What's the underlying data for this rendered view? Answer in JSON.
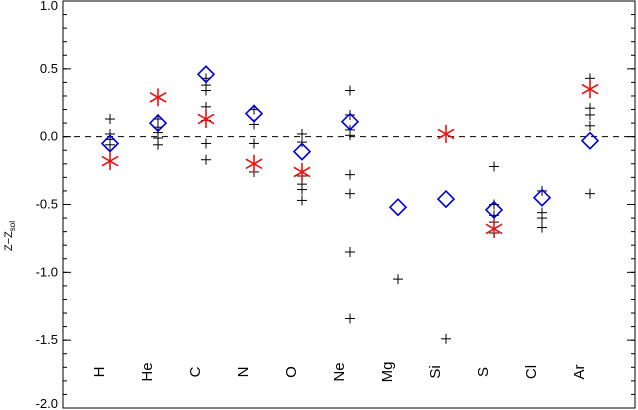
{
  "chart_data": {
    "type": "scatter",
    "ylabel": "Z−Z",
    "ylabel_subscript": "sol",
    "ylim": [
      -2.0,
      1.0
    ],
    "yticks": [
      {
        "value": 1.0,
        "label": "1.0"
      },
      {
        "value": 0.5,
        "label": "0.5"
      },
      {
        "value": 0.0,
        "label": "0.0"
      },
      {
        "value": -0.5,
        "label": "-0.5"
      },
      {
        "value": -1.0,
        "label": "-1.0"
      },
      {
        "value": -1.5,
        "label": "-1.5"
      },
      {
        "value": -2.0,
        "label": "-2.0"
      }
    ],
    "categories": [
      "H",
      "He",
      "C",
      "N",
      "O",
      "Ne",
      "Mg",
      "Si",
      "S",
      "Cl",
      "Ar"
    ],
    "reference_line": {
      "y": 0.0,
      "style": "dashed"
    },
    "series": [
      {
        "marker": "plus",
        "color": "#000000",
        "points": [
          {
            "category": "H",
            "values": [
              0.13,
              0.02,
              -0.02,
              -0.06
            ]
          },
          {
            "category": "He",
            "values": [
              0.13,
              0.07,
              0.03,
              -0.01,
              -0.06
            ]
          },
          {
            "category": "C",
            "values": [
              0.43,
              0.38,
              0.34,
              0.22,
              0.12,
              -0.05,
              -0.17
            ]
          },
          {
            "category": "N",
            "values": [
              0.2,
              0.09,
              -0.05,
              -0.26
            ]
          },
          {
            "category": "O",
            "values": [
              0.02,
              -0.04,
              -0.29,
              -0.35,
              -0.39,
              -0.47
            ]
          },
          {
            "category": "Ne",
            "values": [
              0.34,
              0.16,
              0.05,
              0.01,
              -0.28,
              -0.42,
              -0.85,
              -1.34
            ]
          },
          {
            "category": "Mg",
            "values": [
              -1.05
            ]
          },
          {
            "category": "Si",
            "values": [
              -1.49
            ]
          },
          {
            "category": "S",
            "values": [
              -0.22,
              -0.5,
              -0.58,
              -0.63,
              -0.71
            ]
          },
          {
            "category": "Cl",
            "values": [
              -0.4,
              -0.56,
              -0.6,
              -0.67
            ]
          },
          {
            "category": "Ar",
            "values": [
              0.43,
              0.21,
              0.16,
              0.08,
              -0.42
            ]
          }
        ]
      },
      {
        "marker": "diamond",
        "color": "#0000dd",
        "points": [
          {
            "category": "H",
            "values": [
              -0.05
            ]
          },
          {
            "category": "He",
            "values": [
              0.1
            ]
          },
          {
            "category": "C",
            "values": [
              0.46
            ]
          },
          {
            "category": "N",
            "values": [
              0.17
            ]
          },
          {
            "category": "O",
            "values": [
              -0.11
            ]
          },
          {
            "category": "Ne",
            "values": [
              0.11
            ]
          },
          {
            "category": "Mg",
            "values": [
              -0.52
            ]
          },
          {
            "category": "Si",
            "values": [
              -0.46
            ]
          },
          {
            "category": "S",
            "values": [
              -0.54
            ]
          },
          {
            "category": "Cl",
            "values": [
              -0.45
            ]
          },
          {
            "category": "Ar",
            "values": [
              -0.03
            ]
          }
        ]
      },
      {
        "marker": "asterisk",
        "color": "#ee1111",
        "points": [
          {
            "category": "H",
            "values": [
              -0.18
            ]
          },
          {
            "category": "He",
            "values": [
              0.29
            ]
          },
          {
            "category": "C",
            "values": [
              0.13
            ]
          },
          {
            "category": "N",
            "values": [
              -0.2
            ]
          },
          {
            "category": "O",
            "values": [
              -0.26
            ]
          },
          {
            "category": "Si",
            "values": [
              0.02
            ]
          },
          {
            "category": "S",
            "values": [
              -0.68
            ]
          },
          {
            "category": "Ar",
            "values": [
              0.35
            ]
          }
        ]
      }
    ]
  }
}
